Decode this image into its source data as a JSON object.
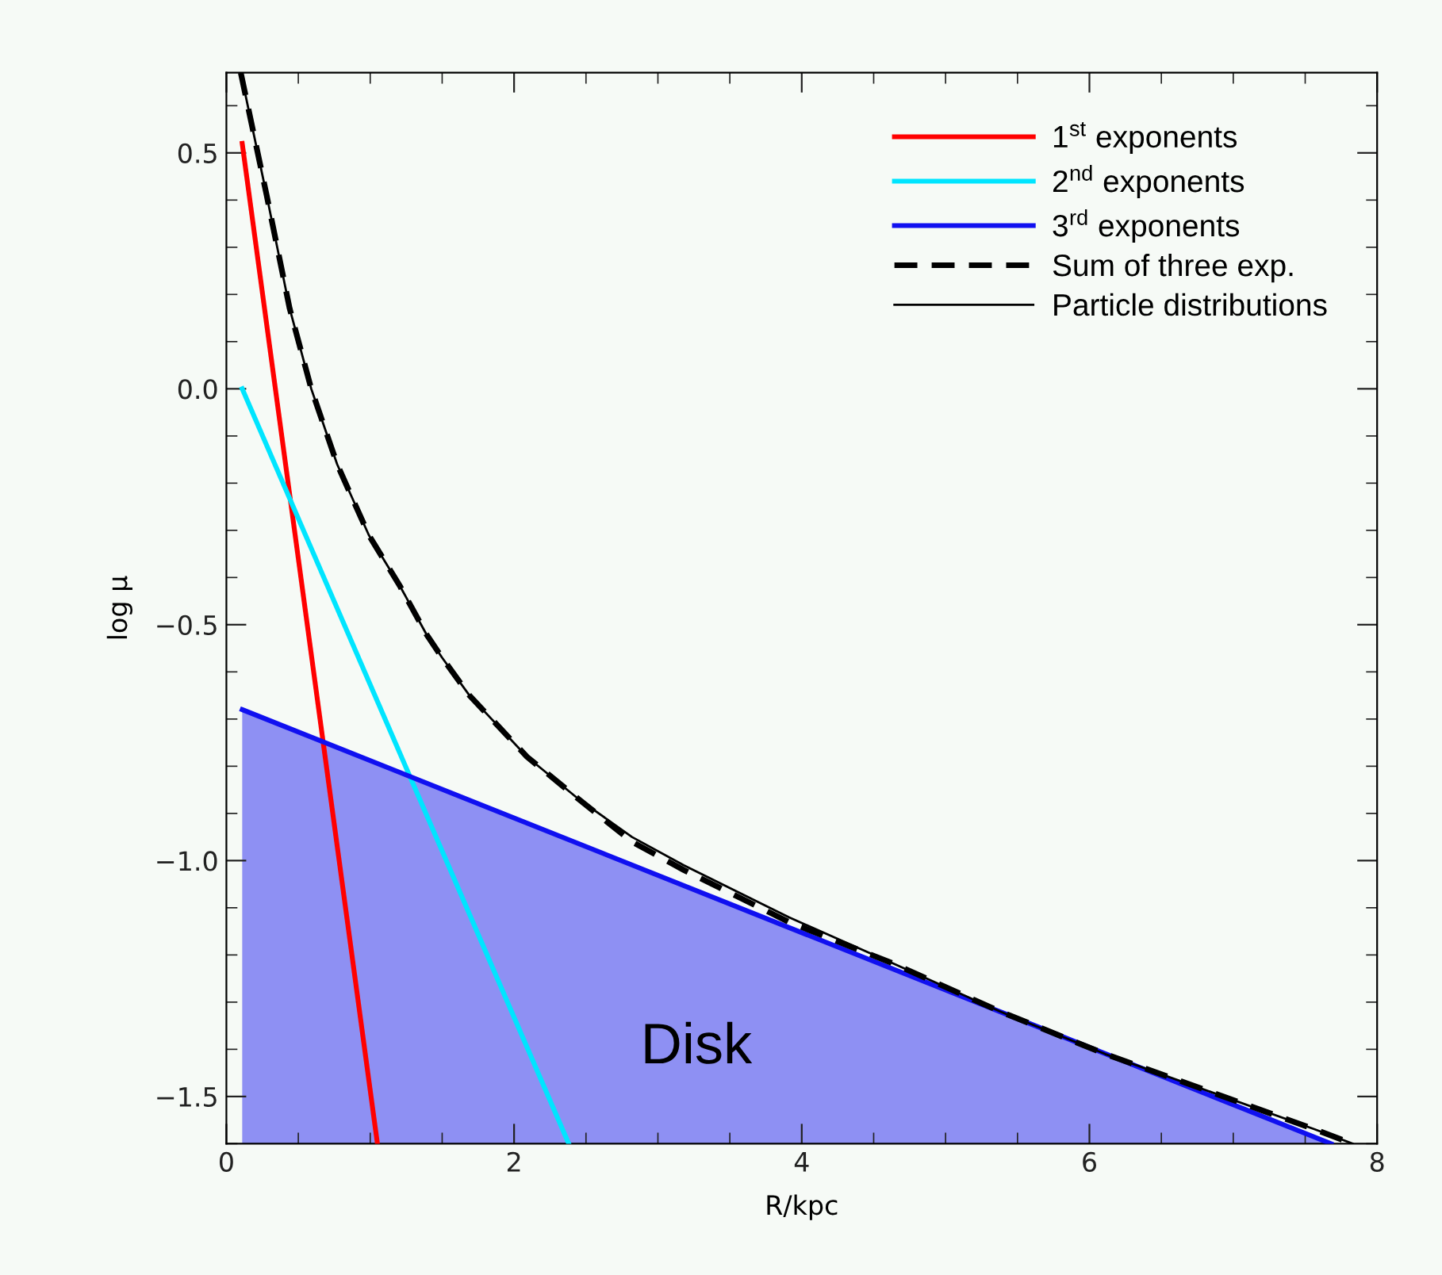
{
  "chart_data": {
    "type": "line",
    "xlabel": "R/kpc",
    "ylabel": "log μ",
    "xlim": [
      0,
      8
    ],
    "ylim": [
      -1.6,
      0.67
    ],
    "xticks": [
      0,
      2,
      4,
      6,
      8
    ],
    "yticks": [
      {
        "value": -1.5,
        "label": "−1.5"
      },
      {
        "value": -1.0,
        "label": "−1.0"
      },
      {
        "value": -0.5,
        "label": "−0.5"
      },
      {
        "value": 0.0,
        "label": "0.0"
      },
      {
        "value": 0.5,
        "label": "0.5"
      }
    ],
    "grid": false,
    "legend": "top right",
    "marker": "none",
    "annotations": [
      "Disk"
    ],
    "series": [
      {
        "name": "1$^{st}$ exponents",
        "color": "#ff0000",
        "x": [
          0.11,
          1.05
        ],
        "values": [
          0.52,
          -1.6
        ]
      },
      {
        "name": "2$^{nd}$ exponents",
        "color": "#00e5ff",
        "x": [
          0.11,
          2.38
        ],
        "values": [
          0.0,
          -1.6
        ]
      },
      {
        "name": "3$^{rd}$ exponents",
        "type": "area",
        "color": "#1010f0",
        "x": [
          0.11,
          7.68
        ],
        "values": [
          -0.68,
          -1.6
        ]
      },
      {
        "name": "Sum of three exp.",
        "color": "#000000",
        "line_style": "dashed",
        "x": [
          0.1,
          0.28,
          0.44,
          0.59,
          0.77,
          0.99,
          1.21,
          1.39,
          1.5,
          1.69,
          2.09,
          2.45,
          2.82,
          3.18,
          3.91,
          4.65,
          5.38,
          6.11,
          6.84,
          7.57,
          7.83
        ],
        "values": [
          0.67,
          0.41,
          0.17,
          0.0,
          -0.16,
          -0.31,
          -0.42,
          -0.52,
          -0.57,
          -0.65,
          -0.78,
          -0.87,
          -0.96,
          -1.02,
          -1.13,
          -1.22,
          -1.32,
          -1.41,
          -1.49,
          -1.57,
          -1.6
        ]
      },
      {
        "name": "Particle distributions",
        "color": "#000000",
        "line_style": "solid",
        "x": [
          0.1,
          0.28,
          0.44,
          0.59,
          0.77,
          0.99,
          1.21,
          1.39,
          1.5,
          1.69,
          2.09,
          2.45,
          2.82,
          3.18,
          3.91,
          4.65,
          5.38,
          6.11,
          6.84,
          7.57,
          7.83
        ],
        "values": [
          0.67,
          0.41,
          0.17,
          0.0,
          -0.16,
          -0.31,
          -0.42,
          -0.52,
          -0.57,
          -0.65,
          -0.78,
          -0.87,
          -0.95,
          -1.01,
          -1.12,
          -1.22,
          -1.32,
          -1.41,
          -1.49,
          -1.57,
          -1.6
        ]
      }
    ]
  }
}
